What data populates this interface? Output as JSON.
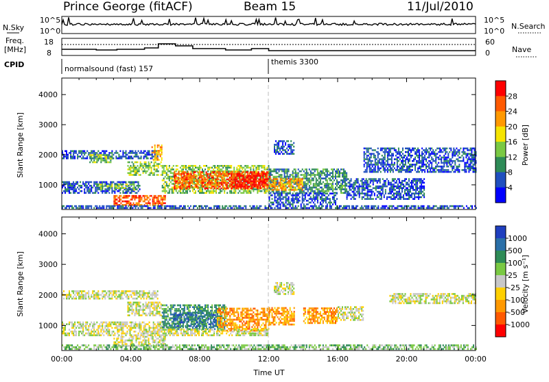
{
  "header": {
    "station": "Prince George (fitACF)",
    "beam": "Beam 15",
    "date": "11/Jul/2010"
  },
  "top_panel_labels": {
    "nsky": "N.Sky",
    "nsearch": "N.Search",
    "freq_line1": "Freq.",
    "freq_line2": "[MHz]",
    "nave": "Nave",
    "cpid": "CPID",
    "nsky_ticks": [
      "10^5",
      "10^0"
    ],
    "nsearch_ticks": [
      "10^5",
      "10^0"
    ],
    "freq_ticks": [
      "18",
      "8"
    ],
    "nave_ticks": [
      "60",
      "0"
    ]
  },
  "cpid_segments": [
    {
      "label": "normalsound (fast) 157",
      "start_hour": 0
    },
    {
      "label": "themis 3300",
      "start_hour": 12
    }
  ],
  "colors": {
    "power": [
      "#0000ff",
      "#1f4fbf",
      "#2e8b57",
      "#7ac943",
      "#f5e400",
      "#ff9900",
      "#ff5a00",
      "#ff0000"
    ],
    "velocity": [
      "#1f3fbf",
      "#2a6fa8",
      "#2e8b57",
      "#7ac943",
      "#c8c8c8",
      "#ffd000",
      "#ff9900",
      "#ff5a00",
      "#ff0000"
    ]
  },
  "chart_data": [
    {
      "type": "heatmap",
      "quantity": "power",
      "ylabel": "Slant Range [km]",
      "xlim": [
        0,
        24
      ],
      "ylim": [
        180,
        4550
      ],
      "y_ticks": [
        1000,
        2000,
        3000,
        4000
      ],
      "colorbar": {
        "label": "Power [dB]",
        "ticks": [
          "4",
          "8",
          "12",
          "16",
          "20",
          "24",
          "28"
        ],
        "range": [
          0,
          32
        ]
      },
      "regions": [
        {
          "t0": 0.0,
          "t1": 5.6,
          "r0": 1850,
          "r1": 2150,
          "level": 1
        },
        {
          "t0": 1.6,
          "t1": 2.9,
          "r0": 1720,
          "r1": 1980,
          "level": 3
        },
        {
          "t0": 3.8,
          "t1": 5.8,
          "r0": 1300,
          "r1": 1750,
          "level": 3
        },
        {
          "t0": 5.2,
          "t1": 5.8,
          "r0": 1800,
          "r1": 2300,
          "level": 5
        },
        {
          "t0": 0.0,
          "t1": 4.5,
          "r0": 700,
          "r1": 1100,
          "level": 1
        },
        {
          "t0": 2.0,
          "t1": 4.2,
          "r0": 800,
          "r1": 1000,
          "level": 3
        },
        {
          "t0": 3.0,
          "t1": 6.0,
          "r0": 300,
          "r1": 650,
          "level": 6
        },
        {
          "t0": 0.0,
          "t1": 24.0,
          "r0": 200,
          "r1": 320,
          "level": 1
        },
        {
          "t0": 5.8,
          "t1": 12.0,
          "r0": 700,
          "r1": 1650,
          "level": 3
        },
        {
          "t0": 6.5,
          "t1": 12.0,
          "r0": 850,
          "r1": 1400,
          "level": 6
        },
        {
          "t0": 9.8,
          "t1": 12.1,
          "r0": 850,
          "r1": 1350,
          "level": 7
        },
        {
          "t0": 12.0,
          "t1": 16.5,
          "r0": 700,
          "r1": 1500,
          "level": 2
        },
        {
          "t0": 12.0,
          "t1": 14.0,
          "r0": 800,
          "r1": 1200,
          "level": 5
        },
        {
          "t0": 12.3,
          "t1": 13.5,
          "r0": 2000,
          "r1": 2450,
          "level": 1
        },
        {
          "t0": 16.5,
          "t1": 21.0,
          "r0": 500,
          "r1": 1200,
          "level": 1
        },
        {
          "t0": 17.5,
          "t1": 24.0,
          "r0": 1400,
          "r1": 2200,
          "level": 1
        },
        {
          "t0": 12.0,
          "t1": 16.0,
          "r0": 320,
          "r1": 700,
          "level": 1
        }
      ]
    },
    {
      "type": "heatmap",
      "quantity": "velocity",
      "ylabel": "Slant Range [km]",
      "xlabel": "Time UT",
      "xlim": [
        0,
        24
      ],
      "ylim": [
        180,
        4550
      ],
      "y_ticks": [
        1000,
        2000,
        3000,
        4000
      ],
      "x_ticks": [
        "00:00",
        "04:00",
        "08:00",
        "12:00",
        "16:00",
        "20:00",
        "00:00"
      ],
      "colorbar": {
        "label": "Velocity [m s⁻¹]",
        "ticks": [
          "1000",
          "500",
          "100",
          "25",
          "-25",
          "-100",
          "-500",
          "-1000"
        ]
      },
      "regions": [
        {
          "t0": 0.0,
          "t1": 5.6,
          "r0": 1850,
          "r1": 2150,
          "level": 4
        },
        {
          "t0": 3.8,
          "t1": 5.8,
          "r0": 1300,
          "r1": 1750,
          "level": 4
        },
        {
          "t0": 0.0,
          "t1": 6.0,
          "r0": 650,
          "r1": 1100,
          "level": 4
        },
        {
          "t0": 3.0,
          "t1": 6.0,
          "r0": 300,
          "r1": 650,
          "level": 4
        },
        {
          "t0": 5.8,
          "t1": 9.5,
          "r0": 850,
          "r1": 1650,
          "level": 2
        },
        {
          "t0": 6.5,
          "t1": 9.0,
          "r0": 950,
          "r1": 1400,
          "level": 1
        },
        {
          "t0": 9.0,
          "t1": 12.0,
          "r0": 800,
          "r1": 1550,
          "level": 6
        },
        {
          "t0": 12.0,
          "t1": 13.5,
          "r0": 1000,
          "r1": 1550,
          "level": 6
        },
        {
          "t0": 14.0,
          "t1": 16.0,
          "r0": 1050,
          "r1": 1550,
          "level": 6
        },
        {
          "t0": 16.0,
          "t1": 17.5,
          "r0": 1150,
          "r1": 1600,
          "level": 4
        },
        {
          "t0": 19.0,
          "t1": 24.0,
          "r0": 1700,
          "r1": 2050,
          "level": 4
        },
        {
          "t0": 0.0,
          "t1": 24.0,
          "r0": 200,
          "r1": 380,
          "level": 3
        },
        {
          "t0": 6.0,
          "t1": 12.0,
          "r0": 650,
          "r1": 850,
          "level": 4
        },
        {
          "t0": 12.3,
          "t1": 13.5,
          "r0": 2000,
          "r1": 2400,
          "level": 4
        }
      ]
    }
  ]
}
